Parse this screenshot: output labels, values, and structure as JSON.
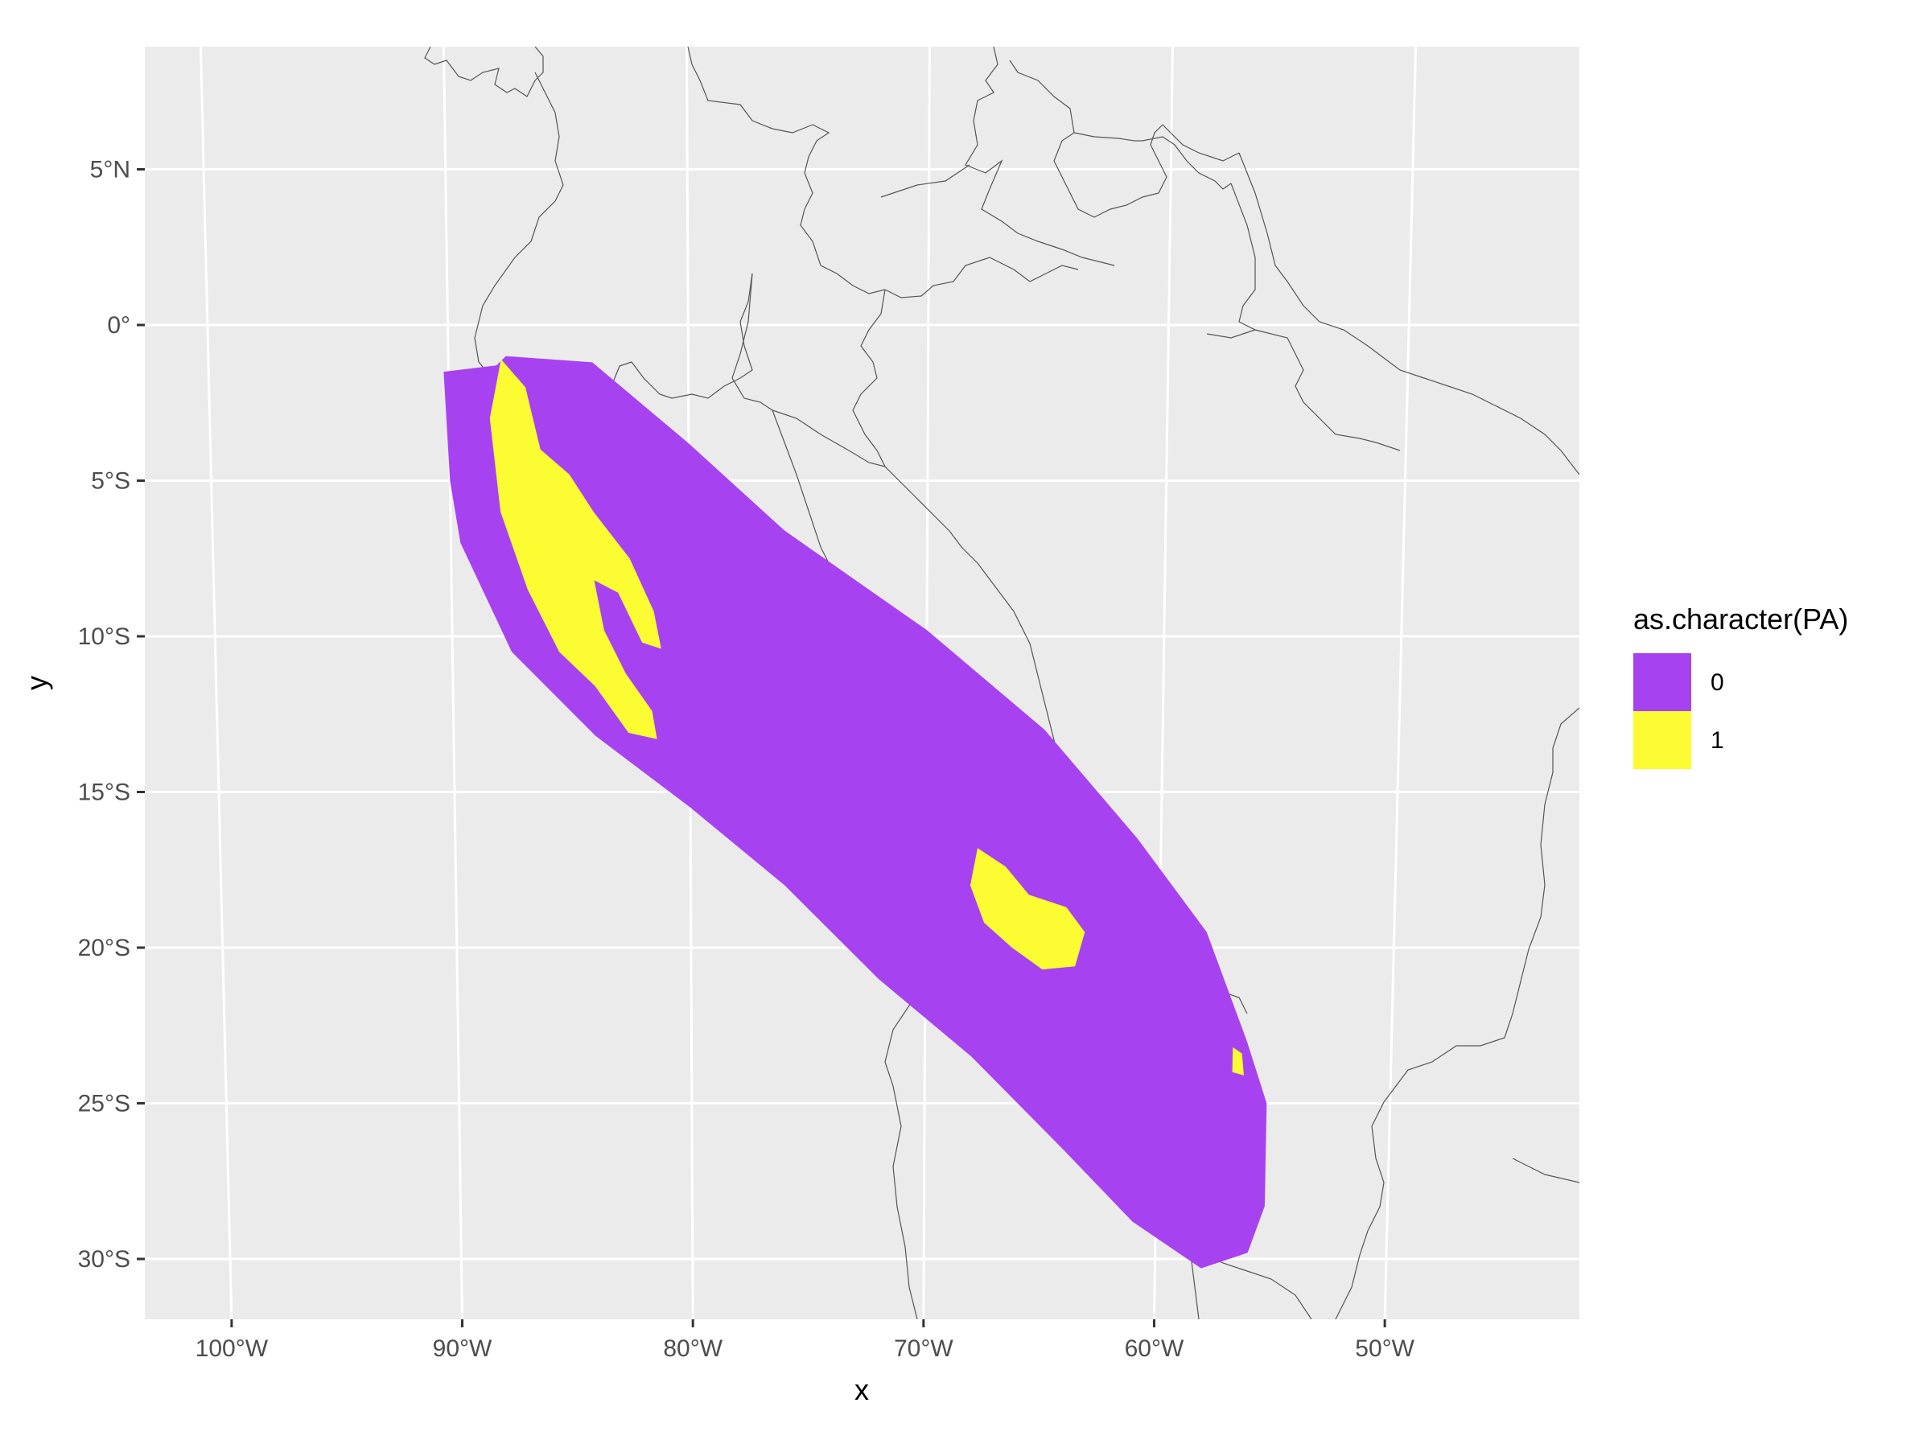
{
  "chart_data": {
    "type": "heatmap",
    "xlabel": "x",
    "ylabel": "y",
    "x_ticks": [
      {
        "value": -100,
        "label": "100°W"
      },
      {
        "value": -90,
        "label": "90°W"
      },
      {
        "value": -80,
        "label": "80°W"
      },
      {
        "value": -70,
        "label": "70°W"
      },
      {
        "value": -60,
        "label": "60°W"
      },
      {
        "value": -50,
        "label": "50°W"
      }
    ],
    "y_ticks": [
      {
        "value": 5,
        "label": "5°N"
      },
      {
        "value": 0,
        "label": "0°"
      },
      {
        "value": -5,
        "label": "5°S"
      },
      {
        "value": -10,
        "label": "10°S"
      },
      {
        "value": -15,
        "label": "15°S"
      },
      {
        "value": -20,
        "label": "20°S"
      },
      {
        "value": -25,
        "label": "25°S"
      },
      {
        "value": -30,
        "label": "30°S"
      }
    ],
    "xlim": [
      -104,
      -41.5
    ],
    "ylim": [
      -32,
      9
    ],
    "grid": true,
    "legend": {
      "title": "as.character(PA)",
      "position": "right",
      "entries": [
        {
          "label": "0",
          "color": "#A742F0"
        },
        {
          "label": "1",
          "color": "#FCFC32"
        }
      ]
    },
    "regions": {
      "absence_0": {
        "label": "0",
        "color": "#A742F0",
        "polygon": [
          [
            -87.6,
            -1.0
          ],
          [
            -84.0,
            -1.2
          ],
          [
            -80,
            -3.8
          ],
          [
            -76,
            -6.6
          ],
          [
            -70,
            -9.8
          ],
          [
            -65,
            -13
          ],
          [
            -61,
            -16.5
          ],
          [
            -58,
            -19.5
          ],
          [
            -56.2,
            -23
          ],
          [
            -55.3,
            -25
          ],
          [
            -55.3,
            -28.3
          ],
          [
            -56,
            -29.8
          ],
          [
            -58,
            -30.3
          ],
          [
            -61,
            -28.8
          ],
          [
            -64,
            -26.5
          ],
          [
            -68,
            -23.5
          ],
          [
            -72,
            -21
          ],
          [
            -76,
            -18
          ],
          [
            -80,
            -15.5
          ],
          [
            -84,
            -13.2
          ],
          [
            -87.5,
            -10.5
          ],
          [
            -89.6,
            -7
          ],
          [
            -90,
            -5
          ],
          [
            -90.2,
            -1.5
          ],
          [
            -88,
            -1.3
          ]
        ]
      },
      "presence_1": [
        {
          "label": "1",
          "color": "#FCFC32",
          "polygon": [
            [
              -87.8,
              -1.1
            ],
            [
              -86.8,
              -2
            ],
            [
              -86.2,
              -4
            ],
            [
              -85,
              -4.8
            ],
            [
              -84,
              -6
            ],
            [
              -82.5,
              -7.5
            ],
            [
              -81.5,
              -9.2
            ],
            [
              -81.2,
              -10.4
            ],
            [
              -82,
              -10.2
            ],
            [
              -83,
              -8.6
            ],
            [
              -84,
              -8.2
            ],
            [
              -83.6,
              -9.8
            ],
            [
              -82.7,
              -11.2
            ],
            [
              -81.6,
              -12.4
            ],
            [
              -81.4,
              -13.3
            ],
            [
              -82.6,
              -13.1
            ],
            [
              -84,
              -11.6
            ],
            [
              -85.5,
              -10.5
            ],
            [
              -86.8,
              -8.5
            ],
            [
              -87.9,
              -6
            ],
            [
              -88.3,
              -3
            ]
          ]
        },
        {
          "label": "1",
          "color": "#FCFC32",
          "polygon": [
            [
              -67.8,
              -16.8
            ],
            [
              -66.6,
              -17.4
            ],
            [
              -65.6,
              -18.3
            ],
            [
              -64,
              -18.7
            ],
            [
              -63.2,
              -19.5
            ],
            [
              -63.6,
              -20.6
            ],
            [
              -65,
              -20.7
            ],
            [
              -66.3,
              -20
            ],
            [
              -67.5,
              -19.2
            ],
            [
              -68.1,
              -18
            ]
          ]
        },
        {
          "label": "1",
          "color": "#FCFC32",
          "polygon": [
            [
              -56.8,
              -23.2
            ],
            [
              -56.4,
              -23.4
            ],
            [
              -56.3,
              -24.1
            ],
            [
              -56.8,
              -24.0
            ]
          ]
        }
      ]
    }
  }
}
